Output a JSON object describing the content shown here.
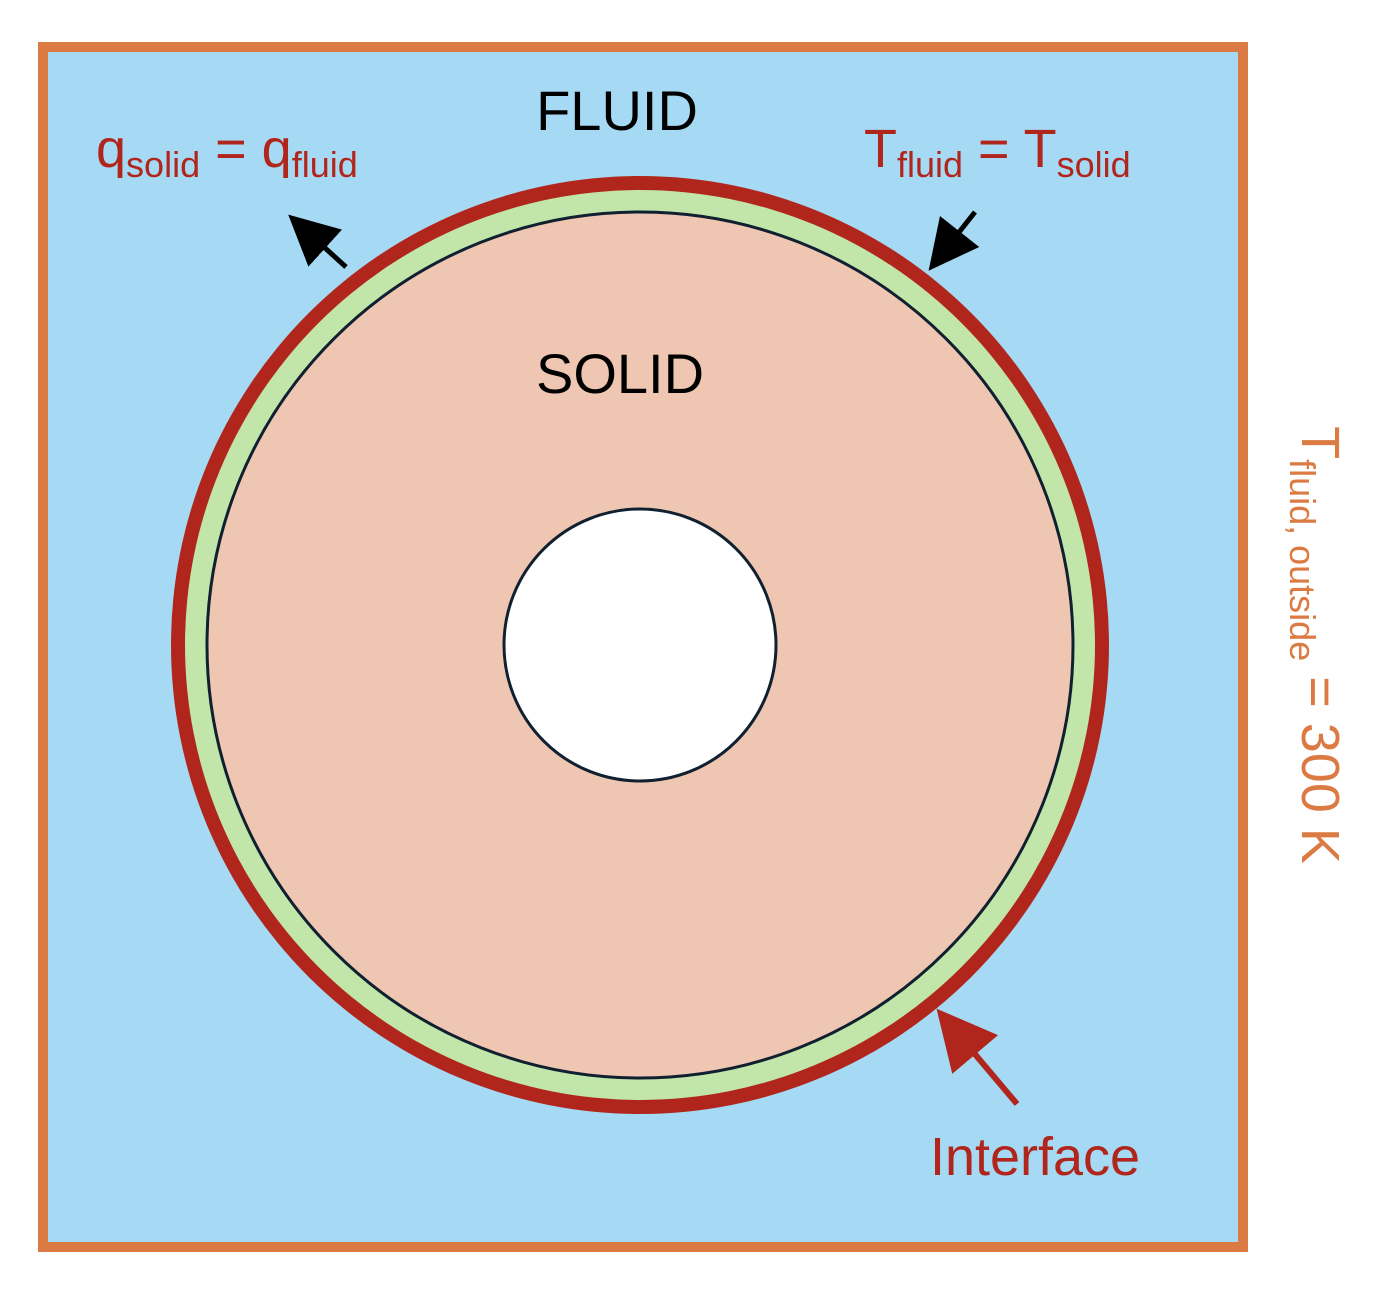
{
  "colors": {
    "fluid_fill": "#a6d9f3",
    "domain_border": "#dc7a44",
    "interface_ring": "#b1261c",
    "coating_ring": "#c2e5aa",
    "solid_fill": "#eec6b1",
    "hole_fill": "#ffffff",
    "outline": "#102030",
    "label_red": "#b1261c",
    "label_orange": "#dc7a44",
    "label_black": "#000000"
  },
  "labels": {
    "fluid": "FLUID",
    "solid": "SOLID",
    "flux_condition": {
      "q1": "q",
      "sub1": "solid",
      "eq": " = ",
      "q2": "q",
      "sub2": "fluid"
    },
    "temperature_condition": {
      "t1": "T",
      "sub1": "fluid",
      "eq": " = ",
      "t2": "T",
      "sub2": "solid"
    },
    "interface": "Interface",
    "outside_bc": {
      "t": "T",
      "sub": "fluid, outside",
      "rest": " = 300 K"
    }
  }
}
